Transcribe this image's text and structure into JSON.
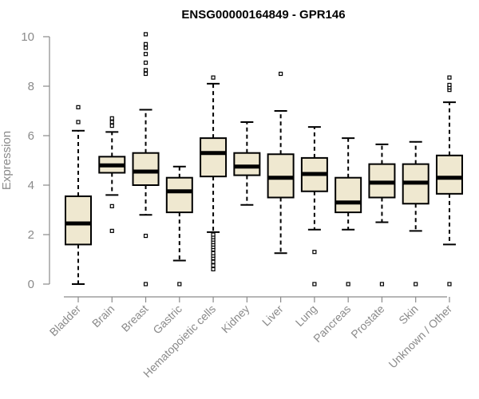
{
  "chart_data": {
    "type": "box",
    "title": "ENSG00000164849 - GPR146",
    "ylabel": "Expression",
    "xlabel": "",
    "ylim": [
      0,
      10
    ],
    "yticks": [
      0,
      2,
      4,
      6,
      8,
      10
    ],
    "colors": {
      "box_fill": "#efe8d0",
      "box_stroke": "#000000",
      "axis": "#8a8a8a"
    },
    "categories": [
      "Bladder",
      "Brain",
      "Breast",
      "Gastric",
      "Hematopoietic cells",
      "Kidney",
      "Liver",
      "Lung",
      "Pancreas",
      "Prostate",
      "Skin",
      "Unknown / Other"
    ],
    "boxes": [
      {
        "category": "Bladder",
        "whisker_low": 0.0,
        "q1": 1.6,
        "median": 2.45,
        "q3": 3.55,
        "whisker_high": 6.2,
        "outliers": [
          6.55,
          7.15
        ]
      },
      {
        "category": "Brain",
        "whisker_low": 3.6,
        "q1": 4.5,
        "median": 4.8,
        "q3": 5.15,
        "whisker_high": 6.15,
        "outliers": [
          2.15,
          3.15,
          6.4,
          6.55,
          6.7
        ]
      },
      {
        "category": "Breast",
        "whisker_low": 2.8,
        "q1": 4.0,
        "median": 4.55,
        "q3": 5.3,
        "whisker_high": 7.05,
        "outliers": [
          0.0,
          1.95,
          8.5,
          8.65,
          8.95,
          9.3,
          9.55,
          9.7,
          10.1
        ]
      },
      {
        "category": "Gastric",
        "whisker_low": 0.95,
        "q1": 2.9,
        "median": 3.75,
        "q3": 4.3,
        "whisker_high": 4.75,
        "outliers": [
          0.0
        ]
      },
      {
        "category": "Hematopoietic cells",
        "whisker_low": 2.1,
        "q1": 4.35,
        "median": 5.3,
        "q3": 5.9,
        "whisker_high": 8.1,
        "outliers": [
          0.6,
          0.75,
          0.9,
          1.05,
          1.15,
          1.25,
          1.4,
          1.5,
          1.6,
          1.7,
          1.8,
          1.9,
          2.0,
          8.35
        ]
      },
      {
        "category": "Kidney",
        "whisker_low": 3.2,
        "q1": 4.4,
        "median": 4.75,
        "q3": 5.3,
        "whisker_high": 6.55,
        "outliers": []
      },
      {
        "category": "Liver",
        "whisker_low": 1.25,
        "q1": 3.5,
        "median": 4.3,
        "q3": 5.25,
        "whisker_high": 7.0,
        "outliers": [
          8.5
        ]
      },
      {
        "category": "Lung",
        "whisker_low": 2.2,
        "q1": 3.75,
        "median": 4.45,
        "q3": 5.1,
        "whisker_high": 6.35,
        "outliers": [
          0.0,
          1.3
        ]
      },
      {
        "category": "Pancreas",
        "whisker_low": 2.2,
        "q1": 2.9,
        "median": 3.3,
        "q3": 4.3,
        "whisker_high": 5.9,
        "outliers": [
          0.0
        ]
      },
      {
        "category": "Prostate",
        "whisker_low": 2.5,
        "q1": 3.5,
        "median": 4.1,
        "q3": 4.85,
        "whisker_high": 5.65,
        "outliers": [
          0.0
        ]
      },
      {
        "category": "Skin",
        "whisker_low": 2.15,
        "q1": 3.25,
        "median": 4.1,
        "q3": 4.85,
        "whisker_high": 5.75,
        "outliers": [
          0.0
        ]
      },
      {
        "category": "Unknown / Other",
        "whisker_low": 1.6,
        "q1": 3.65,
        "median": 4.3,
        "q3": 5.2,
        "whisker_high": 7.35,
        "outliers": [
          0.0,
          7.85,
          7.95,
          8.05,
          8.35
        ]
      }
    ]
  }
}
